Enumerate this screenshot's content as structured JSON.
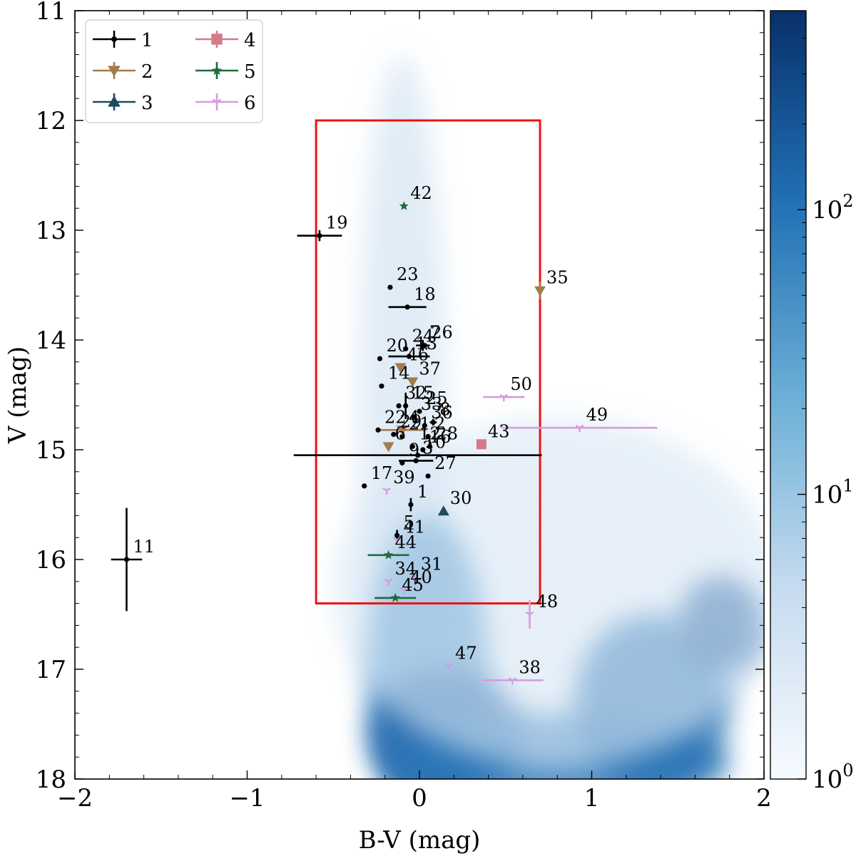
{
  "chart_data": {
    "type": "scatter",
    "xlabel": "B-V (mag)",
    "ylabel": "V (mag)",
    "xlim": [
      -2,
      2
    ],
    "ylim": [
      18,
      11
    ],
    "x_ticks": [
      "−2",
      "−1",
      "0",
      "1",
      "2"
    ],
    "x_tick_values": [
      -2,
      -1,
      0,
      1,
      2
    ],
    "y_ticks": [
      "11",
      "12",
      "13",
      "14",
      "15",
      "16",
      "17",
      "18"
    ],
    "y_tick_values": [
      11,
      12,
      13,
      14,
      15,
      16,
      17,
      18
    ],
    "selection_box": {
      "x_range": [
        -0.6,
        0.7
      ],
      "y_range": [
        12.0,
        16.4
      ],
      "color": "#ee1111"
    },
    "colorbar": {
      "scale": "log",
      "range": [
        1,
        500
      ],
      "ticks": [
        {
          "value": 1,
          "base": "10",
          "exp": "0"
        },
        {
          "value": 10,
          "base": "10",
          "exp": "1"
        },
        {
          "value": 100,
          "base": "10",
          "exp": "2"
        }
      ],
      "colors": [
        "#f7fbff",
        "#c6dbef",
        "#6baed6",
        "#2171b5",
        "#08306b"
      ]
    },
    "background_density": "2D histogram of field stars (log-scaled counts, Blues colormap)",
    "groups": [
      {
        "name": "1",
        "color": "#000000",
        "marker": "circle"
      },
      {
        "name": "2",
        "color": "#a47c4c",
        "marker": "triangle-down"
      },
      {
        "name": "3",
        "color": "#1f4a5e",
        "marker": "triangle-up"
      },
      {
        "name": "4",
        "color": "#d47a8a",
        "marker": "square"
      },
      {
        "name": "5",
        "color": "#1f6b3e",
        "marker": "star"
      },
      {
        "name": "6",
        "color": "#d79bde",
        "marker": "tri"
      }
    ],
    "legend": {
      "labels": [
        "1",
        "2",
        "3",
        "4",
        "5",
        "6"
      ],
      "location": "top-left"
    },
    "points": [
      {
        "label": "1",
        "group": "1",
        "x": -0.05,
        "y": 15.5,
        "xerr": 0,
        "yerr": 0.06
      },
      {
        "label": "5",
        "group": "1",
        "x": -0.13,
        "y": 15.78,
        "xerr": 0,
        "yerr": 0.05
      },
      {
        "label": "7",
        "group": "1",
        "x": 0.02,
        "y": 14.05,
        "xerr": 0.04,
        "yerr": 0.05
      },
      {
        "label": "8",
        "group": "1",
        "x": 0.08,
        "y": 14.75,
        "xerr": 0.02,
        "yerr": 0.03
      },
      {
        "label": "10",
        "group": "1",
        "x": -0.01,
        "y": 15.05,
        "xerr": 0.72,
        "yerr": 0
      },
      {
        "label": "11",
        "group": "1",
        "x": -1.7,
        "y": 16.0,
        "xerr": 0.09,
        "yerr": 0.47
      },
      {
        "label": "12",
        "group": "1",
        "x": -0.04,
        "y": 14.97,
        "xerr": 0,
        "yerr": 0
      },
      {
        "label": "13",
        "group": "1",
        "x": -0.06,
        "y": 14.15,
        "xerr": 0.12,
        "yerr": 0
      },
      {
        "label": "14",
        "group": "1",
        "x": -0.22,
        "y": 14.42,
        "xerr": 0,
        "yerr": 0
      },
      {
        "label": "15",
        "group": "1",
        "x": -0.08,
        "y": 14.6,
        "xerr": 0,
        "yerr": 0.12
      },
      {
        "label": "17",
        "group": "1",
        "x": -0.32,
        "y": 15.33,
        "xerr": 0,
        "yerr": 0
      },
      {
        "label": "18",
        "group": "1",
        "x": -0.07,
        "y": 13.7,
        "xerr": 0.11,
        "yerr": 0
      },
      {
        "label": "19",
        "group": "1",
        "x": -0.58,
        "y": 13.05,
        "xerr": 0.13,
        "yerr": 0.05
      },
      {
        "label": "20",
        "group": "1",
        "x": -0.23,
        "y": 14.17,
        "xerr": 0,
        "yerr": 0
      },
      {
        "label": "21",
        "group": "1",
        "x": -0.1,
        "y": 14.88,
        "xerr": 0,
        "yerr": 0
      },
      {
        "label": "22",
        "group": "1",
        "x": -0.24,
        "y": 14.82,
        "xerr": 0,
        "yerr": 0
      },
      {
        "label": "23",
        "group": "1",
        "x": -0.17,
        "y": 13.52,
        "xerr": 0,
        "yerr": 0
      },
      {
        "label": "24",
        "group": "1",
        "x": -0.08,
        "y": 14.08,
        "xerr": 0,
        "yerr": 0
      },
      {
        "label": "25",
        "group": "1",
        "x": 0.0,
        "y": 14.65,
        "xerr": 0,
        "yerr": 0
      },
      {
        "label": "26",
        "group": "1",
        "x": 0.03,
        "y": 14.05,
        "xerr": 0,
        "yerr": 0
      },
      {
        "label": "27",
        "group": "1",
        "x": 0.05,
        "y": 15.24,
        "xerr": 0,
        "yerr": 0
      },
      {
        "label": "28",
        "group": "1",
        "x": 0.06,
        "y": 14.97,
        "xerr": 0,
        "yerr": 0
      },
      {
        "label": "29",
        "group": "1",
        "x": -0.15,
        "y": 14.86,
        "xerr": 0,
        "yerr": 0
      },
      {
        "label": "32",
        "group": "1",
        "x": -0.12,
        "y": 14.6,
        "xerr": 0,
        "yerr": 0
      },
      {
        "label": "33",
        "group": "1",
        "x": -0.03,
        "y": 14.7,
        "xerr": 0,
        "yerr": 0
      },
      {
        "label": "36",
        "group": "1",
        "x": 0.03,
        "y": 14.78,
        "xerr": 0,
        "yerr": 0
      },
      {
        "label": "9",
        "group": "1",
        "x": -0.1,
        "y": 15.12,
        "xerr": 0,
        "yerr": 0
      },
      {
        "label": "3",
        "group": "1",
        "x": -0.02,
        "y": 15.1,
        "xerr": 0.1,
        "yerr": 0
      },
      {
        "label": "16",
        "group": "1",
        "x": 0.02,
        "y": 15.0,
        "xerr": 0,
        "yerr": 0
      },
      {
        "label": "2",
        "group": "1",
        "x": 0.05,
        "y": 14.88,
        "xerr": 0,
        "yerr": 0
      },
      {
        "label": "35",
        "group": "2",
        "x": 0.7,
        "y": 13.55,
        "xerr": 0,
        "yerr": 0.08
      },
      {
        "label": "37",
        "group": "2",
        "x": -0.04,
        "y": 14.38,
        "xerr": 0,
        "yerr": 0
      },
      {
        "label": "46",
        "group": "2",
        "x": -0.11,
        "y": 14.25,
        "xerr": 0,
        "yerr": 0
      },
      {
        "label": "6",
        "group": "2",
        "x": -0.18,
        "y": 14.97,
        "xerr": 0,
        "yerr": 0
      },
      {
        "label": "4",
        "group": "2",
        "x": -0.1,
        "y": 14.82,
        "xerr": 0.14,
        "yerr": 0
      },
      {
        "label": "30",
        "group": "3",
        "x": 0.14,
        "y": 15.56,
        "xerr": 0,
        "yerr": 0
      },
      {
        "label": "43",
        "group": "4",
        "x": 0.36,
        "y": 14.95,
        "xerr": 0,
        "yerr": 0
      },
      {
        "label": "42",
        "group": "5",
        "x": -0.09,
        "y": 12.78,
        "xerr": 0,
        "yerr": 0
      },
      {
        "label": "44",
        "group": "5",
        "x": -0.18,
        "y": 15.96,
        "xerr": 0.12,
        "yerr": 0
      },
      {
        "label": "45",
        "group": "5",
        "x": -0.14,
        "y": 16.35,
        "xerr": 0.12,
        "yerr": 0
      },
      {
        "label": "50",
        "group": "6",
        "x": 0.49,
        "y": 14.52,
        "xerr": 0.12,
        "yerr": 0
      },
      {
        "label": "49",
        "group": "6",
        "x": 0.93,
        "y": 14.8,
        "xerr": 0.45,
        "yerr": 0
      },
      {
        "label": "48",
        "group": "6",
        "x": 0.64,
        "y": 16.5,
        "xerr": 0,
        "yerr": 0.13
      },
      {
        "label": "47",
        "group": "6",
        "x": 0.17,
        "y": 16.97,
        "xerr": 0,
        "yerr": 0
      },
      {
        "label": "38",
        "group": "6",
        "x": 0.54,
        "y": 17.1,
        "xerr": 0.18,
        "yerr": 0
      },
      {
        "label": "39",
        "group": "6",
        "x": -0.19,
        "y": 15.37,
        "xerr": 0,
        "yerr": 0
      },
      {
        "label": "34",
        "group": "6",
        "x": -0.18,
        "y": 16.2,
        "xerr": 0,
        "yerr": 0
      },
      {
        "label": "40",
        "group": "6",
        "x": -0.09,
        "y": 16.28,
        "xerr": 0,
        "yerr": 0
      },
      {
        "label": "31",
        "group": "6",
        "x": -0.03,
        "y": 16.16,
        "xerr": 0,
        "yerr": 0
      },
      {
        "label": "41",
        "group": "6",
        "x": -0.13,
        "y": 15.82,
        "xerr": 0,
        "yerr": 0
      }
    ]
  }
}
